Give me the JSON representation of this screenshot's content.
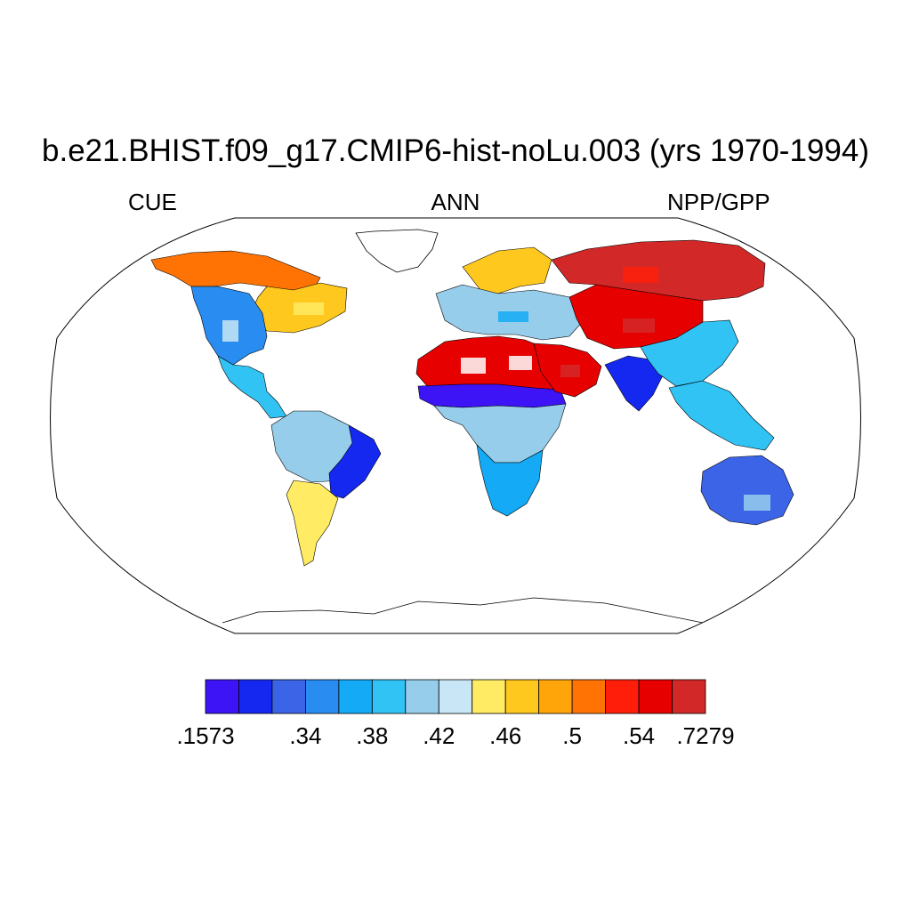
{
  "title": "b.e21.BHIST.f09_g17.CMIP6-hist-noLu.003 (yrs 1970-1994)",
  "left_string": "CUE",
  "center_string": "ANN",
  "right_string": "NPP/GPP",
  "colorbar": {
    "colors": [
      "#3c14f5",
      "#1428f0",
      "#3c64e6",
      "#288cf0",
      "#14aaf5",
      "#32c3f5",
      "#96cdeb",
      "#c8e6f5",
      "#ffeb64",
      "#ffc81e",
      "#ffa50a",
      "#ff7305",
      "#ff1e0a",
      "#e60000",
      "#d22828"
    ],
    "tick_labels": [
      ".1573",
      ".34",
      ".38",
      ".42",
      ".46",
      ".5",
      ".54",
      ".7279"
    ]
  },
  "chart_data": {
    "type": "heatmap",
    "projection": "Robinson",
    "variable": "CUE",
    "season": "ANN",
    "units_label": "NPP/GPP",
    "range": [
      0.1573,
      0.7279
    ],
    "levels": [
      0.1573,
      0.34,
      0.38,
      0.42,
      0.46,
      0.5,
      0.54,
      0.7279
    ],
    "regions": [
      {
        "name": "Alaska / N. Canada",
        "class": 11
      },
      {
        "name": "E. Canada",
        "class": 9
      },
      {
        "name": "W. United States",
        "class": 3
      },
      {
        "name": "Mexico / C. America",
        "class": 5
      },
      {
        "name": "Amazon",
        "class": 6
      },
      {
        "name": "E. Brazil",
        "class": 1
      },
      {
        "name": "Patagonia",
        "class": 8
      },
      {
        "name": "Sahara",
        "class": 13
      },
      {
        "name": "Sahel",
        "class": 0
      },
      {
        "name": "Central Africa",
        "class": 6
      },
      {
        "name": "Southern Africa",
        "class": 4
      },
      {
        "name": "Scandinavia",
        "class": 9
      },
      {
        "name": "Europe",
        "class": 6
      },
      {
        "name": "Siberia",
        "class": 14
      },
      {
        "name": "Middle East",
        "class": 13
      },
      {
        "name": "Central Asia",
        "class": 13
      },
      {
        "name": "India",
        "class": 1
      },
      {
        "name": "China",
        "class": 5
      },
      {
        "name": "SE Asia",
        "class": 5
      },
      {
        "name": "Australia",
        "class": 2
      }
    ]
  }
}
